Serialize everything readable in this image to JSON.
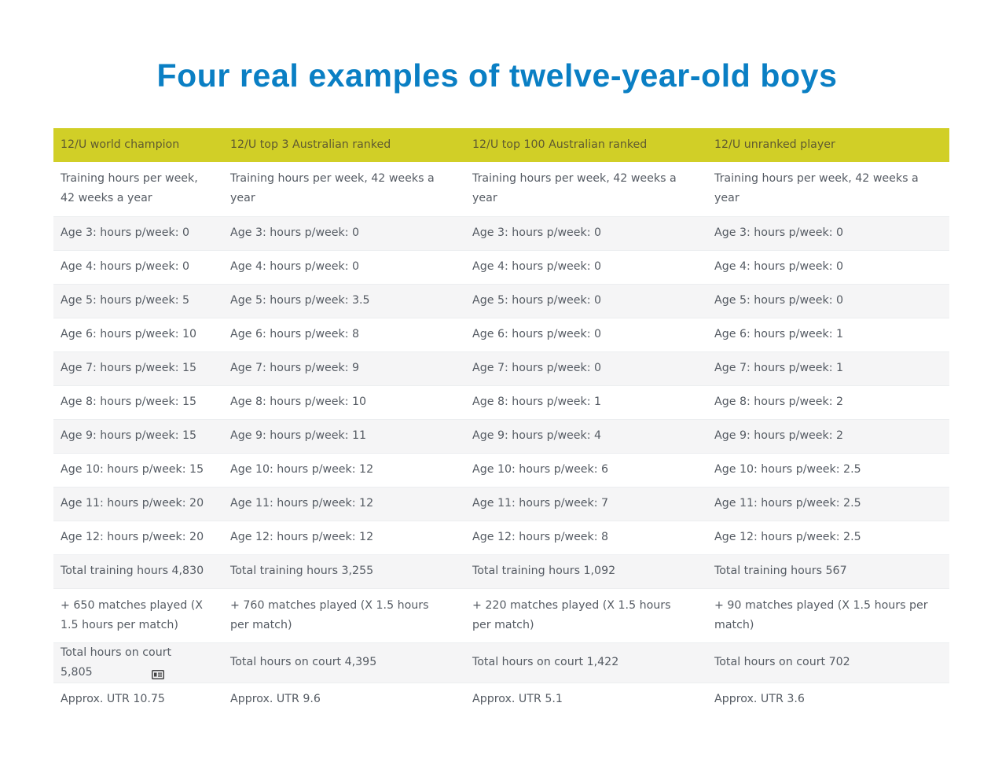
{
  "title": "Four real examples of twelve-year-old boys",
  "table": {
    "headers": [
      "12/U world champion",
      "12/U top 3 Australian ranked",
      "12/U top 100 Australian ranked",
      "12/U unranked player"
    ],
    "rows": [
      [
        "Training hours per week, 42 weeks a year",
        "Training hours per week, 42 weeks a year",
        "Training hours per week, 42 weeks a year",
        "Training hours per week, 42 weeks a year"
      ],
      [
        "Age 3: hours p/week: 0",
        "Age 3: hours p/week: 0",
        "Age 3: hours p/week: 0",
        "Age 3: hours p/week: 0"
      ],
      [
        "Age 4: hours p/week: 0",
        "Age 4: hours p/week: 0",
        "Age 4: hours p/week: 0",
        "Age 4: hours p/week: 0"
      ],
      [
        "Age 5: hours p/week: 5",
        "Age 5: hours p/week: 3.5",
        "Age 5: hours p/week: 0",
        "Age 5: hours p/week: 0"
      ],
      [
        "Age 6: hours p/week: 10",
        "Age 6: hours p/week: 8",
        "Age 6: hours p/week: 0",
        "Age 6: hours p/week: 1"
      ],
      [
        "Age 7: hours p/week: 15",
        "Age 7: hours p/week: 9",
        "Age 7: hours p/week: 0",
        "Age 7: hours p/week: 1"
      ],
      [
        "Age 8: hours p/week: 15",
        "Age 8: hours p/week: 10",
        "Age 8: hours p/week: 1",
        "Age 8: hours p/week: 2"
      ],
      [
        "Age 9: hours p/week: 15",
        "Age 9: hours p/week: 11",
        "Age 9: hours p/week: 4",
        "Age 9: hours p/week: 2"
      ],
      [
        "Age 10: hours p/week: 15",
        "Age 10: hours p/week: 12",
        "Age 10: hours p/week: 6",
        "Age 10: hours p/week: 2.5"
      ],
      [
        "Age 11: hours p/week: 20",
        "Age 11: hours p/week: 12",
        "Age 11: hours p/week: 7",
        "Age 11: hours p/week: 2.5"
      ],
      [
        "Age 12: hours p/week: 20",
        "Age 12: hours p/week: 12",
        "Age 12: hours p/week: 8",
        "Age 12: hours p/week: 2.5"
      ],
      [
        "Total training hours 4,830",
        "Total training hours 3,255",
        "Total training hours 1,092",
        "Total training hours 567"
      ],
      [
        "+ 650 matches played (X 1.5 hours per match)",
        "+ 760 matches played (X 1.5 hours per match)",
        "+ 220 matches played (X 1.5 hours per match)",
        "+ 90 matches played (X 1.5 hours per match)"
      ],
      [
        "Total hours on court 5,805",
        "Total hours on court 4,395",
        "Total hours on court 1,422",
        "Total hours on court 702"
      ],
      [
        "Approx. UTR 10.75",
        "Approx. UTR 9.6",
        "Approx. UTR 5.1",
        "Approx. UTR 3.6"
      ]
    ]
  },
  "icons": {
    "cell_icon": "id-card-icon"
  },
  "colors": {
    "title": "#0a7fc4",
    "header_bg": "#d1cf27",
    "stripe_bg": "#f5f5f6"
  }
}
